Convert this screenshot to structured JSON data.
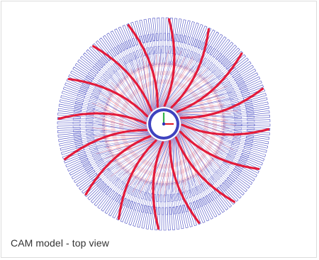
{
  "caption": {
    "text": "CAM model - top view"
  },
  "model": {
    "kind": "impeller-toolpath",
    "view": "top",
    "blade_count": 16,
    "colors": {
      "toolpath_blue": "#2a2fb8",
      "toolpath_red": "#e0304a",
      "blade_red": "#e31b3a",
      "hub_fill": "#ffffff",
      "axis_x": "#e0202a",
      "axis_y": "#33b34a",
      "axis_z": "#2a2fb8"
    },
    "axis_triad": {
      "visible": true,
      "icon": "xyz-axis-triad-icon"
    }
  }
}
